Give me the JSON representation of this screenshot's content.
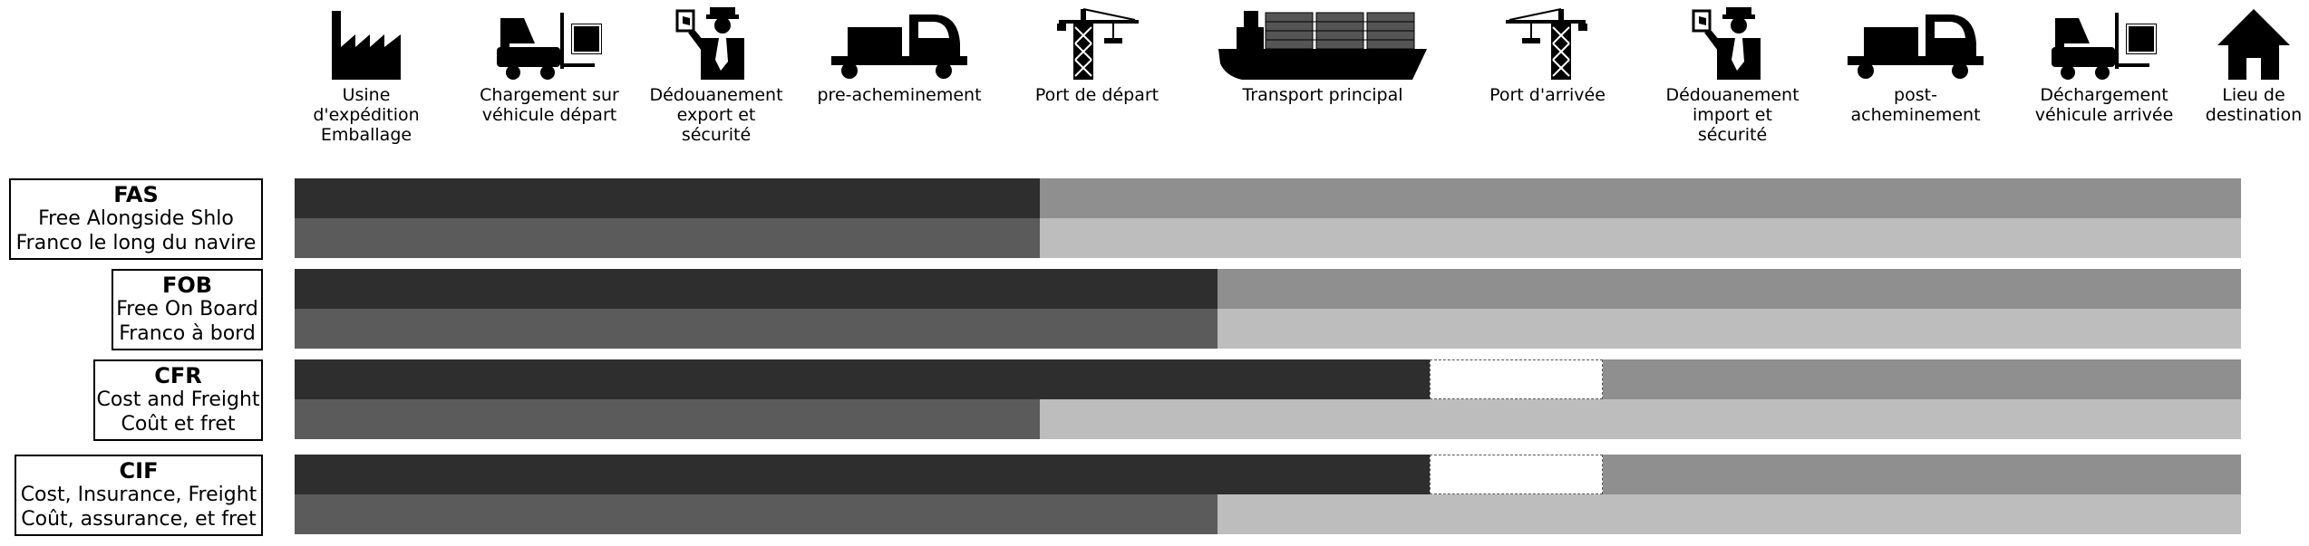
{
  "colors": {
    "seller_risk": "#2e2e2e",
    "buyer_risk": "#8f8f8f",
    "seller_cost": "#5b5b5b",
    "buyer_cost": "#bdbdbd",
    "gap": "#ffffff"
  },
  "stages": [
    {
      "id": "factory",
      "icon": "factory-icon",
      "label": "Usine d'expédition\nEmballage"
    },
    {
      "id": "loading-departure",
      "icon": "forklift-icon",
      "label": "Chargement sur\nvéhicule départ"
    },
    {
      "id": "customs-export",
      "icon": "customs-officer-icon",
      "label": "Dédouanement\nexport et\nsécurité"
    },
    {
      "id": "pre-carriage",
      "icon": "truck-icon",
      "label": "pre-acheminement"
    },
    {
      "id": "departure-port",
      "icon": "crane-icon",
      "label": "Port de départ"
    },
    {
      "id": "main-transport",
      "icon": "container-ship-icon",
      "label": "Transport principal"
    },
    {
      "id": "arrival-port",
      "icon": "crane-icon",
      "label": "Port d'arrivée"
    },
    {
      "id": "customs-import",
      "icon": "customs-officer-icon",
      "label": "Dédouanement\nimport et\nsécurité"
    },
    {
      "id": "on-carriage",
      "icon": "truck-icon",
      "label": "post-acheminement"
    },
    {
      "id": "unloading-arrival",
      "icon": "forklift-icon",
      "label": "Déchargement\nvéhicule arrivée"
    },
    {
      "id": "destination",
      "icon": "house-icon",
      "label": "Lieu de\ndestination"
    }
  ],
  "terms": [
    {
      "code": "FAS",
      "line1": "Free Alongside Shlo",
      "line2": "Franco le long du navire",
      "risk_transfer_pct": 38.3,
      "cost_transfer_pct": 38.3,
      "gap": null
    },
    {
      "code": "FOB",
      "line1": "Free On Board",
      "line2": "Franco à bord",
      "risk_transfer_pct": 47.4,
      "cost_transfer_pct": 47.4,
      "gap": null
    },
    {
      "code": "CFR",
      "line1": "Cost and Freight",
      "line2": "Coût et fret",
      "risk_transfer_pct": 58.3,
      "cost_transfer_pct": 38.3,
      "gap": [
        58.3,
        67.2
      ]
    },
    {
      "code": "CIF",
      "line1": "Cost, Insurance, Freight",
      "line2": "Coût, assurance, et fret",
      "risk_transfer_pct": 58.3,
      "cost_transfer_pct": 47.4,
      "gap": [
        58.3,
        67.2
      ]
    }
  ]
}
